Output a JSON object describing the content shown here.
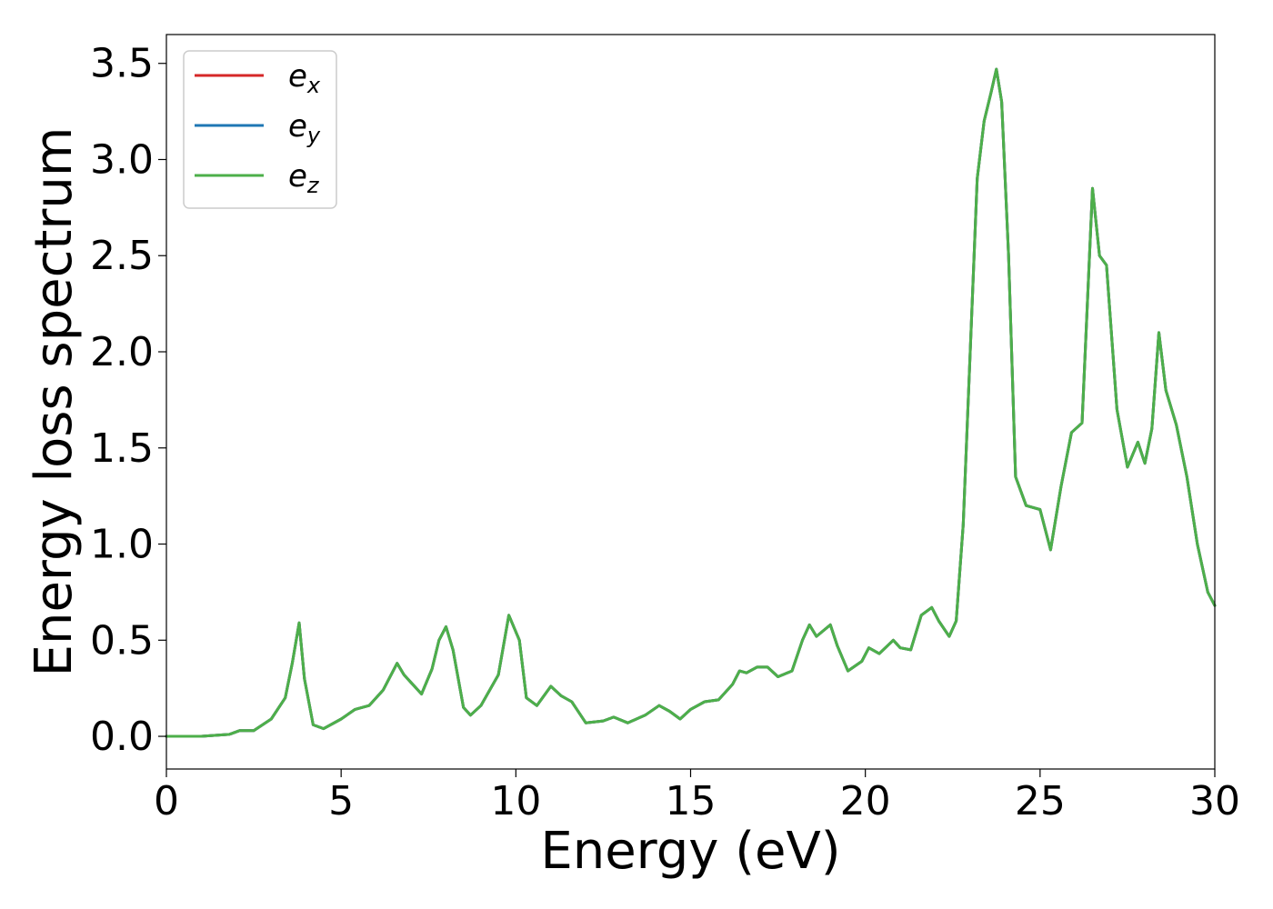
{
  "chart_data": {
    "type": "line",
    "xlabel": "Energy (eV)",
    "ylabel": "Energy loss spectrum",
    "xlim": [
      0,
      30
    ],
    "ylim": [
      -0.17,
      3.65
    ],
    "x_ticks": [
      0,
      5,
      10,
      15,
      20,
      25,
      30
    ],
    "y_ticks": [
      0.0,
      0.5,
      1.0,
      1.5,
      2.0,
      2.5,
      3.0,
      3.5
    ],
    "x_tick_labels": [
      "0",
      "5",
      "10",
      "15",
      "20",
      "25",
      "30"
    ],
    "y_tick_labels": [
      "0.0",
      "0.5",
      "1.0",
      "1.5",
      "2.0",
      "2.5",
      "3.0",
      "3.5"
    ],
    "grid": false,
    "legend_position": "top-left",
    "series": [
      {
        "name_base": "e",
        "name_sub": "x",
        "color": "#d62728"
      },
      {
        "name_base": "e",
        "name_sub": "y",
        "color": "#1f77b4"
      },
      {
        "name_base": "e",
        "name_sub": "z",
        "color": "#4daf4a"
      }
    ],
    "curve": [
      [
        0,
        0.0
      ],
      [
        1.0,
        0.0
      ],
      [
        1.8,
        0.01
      ],
      [
        2.1,
        0.03
      ],
      [
        2.5,
        0.03
      ],
      [
        3.0,
        0.09
      ],
      [
        3.4,
        0.2
      ],
      [
        3.6,
        0.38
      ],
      [
        3.8,
        0.59
      ],
      [
        3.95,
        0.3
      ],
      [
        4.2,
        0.06
      ],
      [
        4.5,
        0.04
      ],
      [
        5.0,
        0.09
      ],
      [
        5.4,
        0.14
      ],
      [
        5.8,
        0.16
      ],
      [
        6.2,
        0.24
      ],
      [
        6.6,
        0.38
      ],
      [
        6.8,
        0.32
      ],
      [
        7.0,
        0.28
      ],
      [
        7.3,
        0.22
      ],
      [
        7.6,
        0.35
      ],
      [
        7.8,
        0.5
      ],
      [
        8.0,
        0.57
      ],
      [
        8.2,
        0.45
      ],
      [
        8.5,
        0.15
      ],
      [
        8.7,
        0.11
      ],
      [
        9.0,
        0.16
      ],
      [
        9.5,
        0.32
      ],
      [
        9.8,
        0.63
      ],
      [
        10.1,
        0.5
      ],
      [
        10.3,
        0.2
      ],
      [
        10.6,
        0.16
      ],
      [
        11.0,
        0.26
      ],
      [
        11.3,
        0.21
      ],
      [
        11.6,
        0.18
      ],
      [
        12.0,
        0.07
      ],
      [
        12.5,
        0.08
      ],
      [
        12.8,
        0.1
      ],
      [
        13.2,
        0.07
      ],
      [
        13.7,
        0.11
      ],
      [
        14.1,
        0.16
      ],
      [
        14.4,
        0.13
      ],
      [
        14.7,
        0.09
      ],
      [
        15.0,
        0.14
      ],
      [
        15.4,
        0.18
      ],
      [
        15.8,
        0.19
      ],
      [
        16.2,
        0.27
      ],
      [
        16.4,
        0.34
      ],
      [
        16.6,
        0.33
      ],
      [
        16.9,
        0.36
      ],
      [
        17.2,
        0.36
      ],
      [
        17.5,
        0.31
      ],
      [
        17.9,
        0.34
      ],
      [
        18.2,
        0.5
      ],
      [
        18.4,
        0.58
      ],
      [
        18.6,
        0.52
      ],
      [
        19.0,
        0.58
      ],
      [
        19.2,
        0.47
      ],
      [
        19.5,
        0.34
      ],
      [
        19.9,
        0.39
      ],
      [
        20.1,
        0.46
      ],
      [
        20.4,
        0.43
      ],
      [
        20.8,
        0.5
      ],
      [
        21.0,
        0.46
      ],
      [
        21.3,
        0.45
      ],
      [
        21.6,
        0.63
      ],
      [
        21.9,
        0.67
      ],
      [
        22.1,
        0.6
      ],
      [
        22.4,
        0.52
      ],
      [
        22.6,
        0.6
      ],
      [
        22.8,
        1.1
      ],
      [
        23.0,
        2.0
      ],
      [
        23.2,
        2.9
      ],
      [
        23.4,
        3.2
      ],
      [
        23.6,
        3.35
      ],
      [
        23.75,
        3.47
      ],
      [
        23.9,
        3.3
      ],
      [
        24.1,
        2.5
      ],
      [
        24.3,
        1.35
      ],
      [
        24.6,
        1.2
      ],
      [
        25.0,
        1.18
      ],
      [
        25.3,
        0.97
      ],
      [
        25.6,
        1.3
      ],
      [
        25.9,
        1.58
      ],
      [
        26.2,
        1.63
      ],
      [
        26.5,
        2.85
      ],
      [
        26.7,
        2.5
      ],
      [
        26.9,
        2.45
      ],
      [
        27.2,
        1.7
      ],
      [
        27.5,
        1.4
      ],
      [
        27.8,
        1.53
      ],
      [
        28.0,
        1.42
      ],
      [
        28.2,
        1.6
      ],
      [
        28.4,
        2.1
      ],
      [
        28.6,
        1.8
      ],
      [
        28.9,
        1.62
      ],
      [
        29.2,
        1.35
      ],
      [
        29.5,
        1.0
      ],
      [
        29.8,
        0.75
      ],
      [
        30.0,
        0.68
      ]
    ]
  }
}
